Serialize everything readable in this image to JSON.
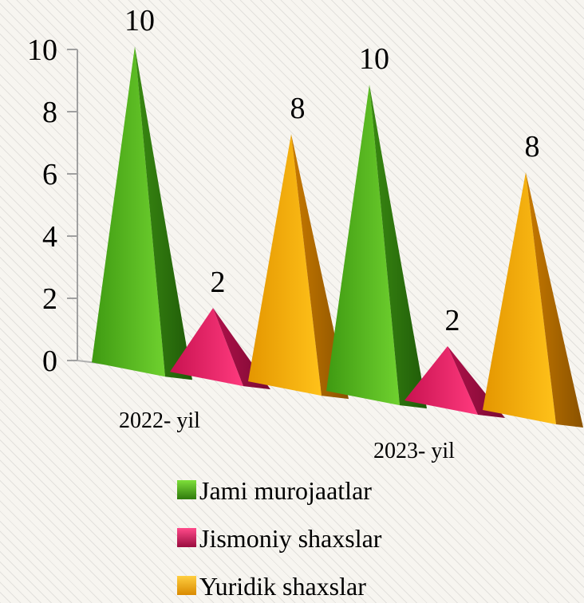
{
  "chart_data": {
    "type": "bar",
    "style": "3d-pyramid",
    "categories": [
      "2022- yil",
      "2023- yil"
    ],
    "series": [
      {
        "name": "Jami murojaatlar",
        "values": [
          10,
          10
        ],
        "color": "#4caf1a"
      },
      {
        "name": "Jismoniy shaxslar",
        "values": [
          2,
          2
        ],
        "color": "#e0195c"
      },
      {
        "name": "Yuridik shaxslar",
        "values": [
          8,
          8
        ],
        "color": "#f0a500"
      }
    ],
    "yticks": [
      "0",
      "2",
      "4",
      "6",
      "8",
      "10"
    ],
    "ylim": [
      0,
      10
    ],
    "legend_position": "bottom",
    "grid": false,
    "title": "",
    "xlabel": "",
    "ylabel": ""
  }
}
